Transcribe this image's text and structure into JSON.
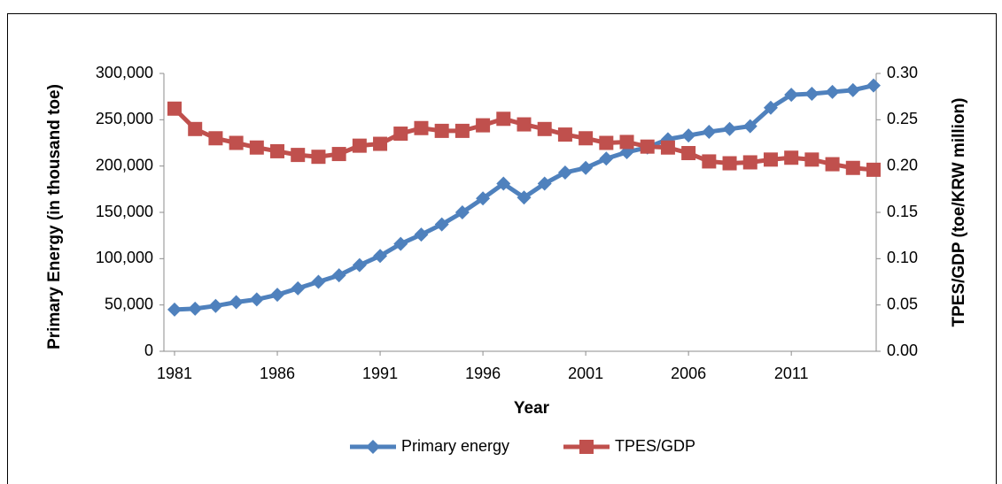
{
  "chart_data": {
    "type": "line",
    "x_label": "Year",
    "y_label": "Primary Energy (in thousand toe)",
    "y2_label": "TPES/GDP (toe/KRW million)",
    "x": [
      1981,
      1982,
      1983,
      1984,
      1985,
      1986,
      1987,
      1988,
      1989,
      1990,
      1991,
      1992,
      1993,
      1994,
      1995,
      1996,
      1997,
      1998,
      1999,
      2000,
      2001,
      2002,
      2003,
      2004,
      2005,
      2006,
      2007,
      2008,
      2009,
      2010,
      2011,
      2012,
      2013,
      2014,
      2015
    ],
    "xlim": [
      1981,
      2015
    ],
    "xticks": [
      1981,
      1986,
      1991,
      1996,
      2001,
      2006,
      2011
    ],
    "ylim": [
      0,
      300000
    ],
    "yticks": [
      0,
      {
        "value": 50000,
        "label": "50,000"
      },
      {
        "value": 100000,
        "label": "100,000"
      },
      {
        "value": 150000,
        "label": "150,000"
      },
      {
        "value": 200000,
        "label": "200,000"
      },
      {
        "value": 250000,
        "label": "250,000"
      },
      {
        "value": 300000,
        "label": "300,000"
      }
    ],
    "y2lim": [
      0,
      0.3
    ],
    "y2ticks": [
      {
        "value": 0,
        "label": "0.00"
      },
      0.05,
      {
        "value": 0.1,
        "label": "0.10"
      },
      0.15,
      {
        "value": 0.2,
        "label": "0.20"
      },
      0.25,
      {
        "value": 0.3,
        "label": "0.30"
      }
    ],
    "grid": false,
    "legend": "bottom",
    "series": [
      {
        "name": "Primary energy",
        "color": "#4f81bd",
        "marker": "diamond",
        "values": [
          45000,
          46000,
          49000,
          53000,
          56000,
          61000,
          68000,
          75000,
          82000,
          93000,
          103000,
          116000,
          126000,
          137000,
          150000,
          165000,
          181000,
          166000,
          181000,
          193000,
          198000,
          208000,
          215000,
          220000,
          229000,
          233000,
          237000,
          240000,
          243000,
          263000,
          277000,
          278000,
          280000,
          282000,
          287000
        ]
      },
      {
        "name": "TPES/GDP",
        "color": "#c0504d",
        "marker": "square",
        "axis": "y2",
        "values": [
          0.262,
          0.24,
          0.23,
          0.225,
          0.22,
          0.216,
          0.212,
          0.21,
          0.213,
          0.222,
          0.224,
          0.235,
          0.241,
          0.238,
          0.238,
          0.244,
          0.251,
          0.245,
          0.24,
          0.234,
          0.23,
          0.225,
          0.226,
          0.221,
          0.22,
          0.214,
          0.205,
          0.203,
          0.204,
          0.207,
          0.209,
          0.207,
          0.202,
          0.198,
          0.196
        ]
      }
    ]
  }
}
